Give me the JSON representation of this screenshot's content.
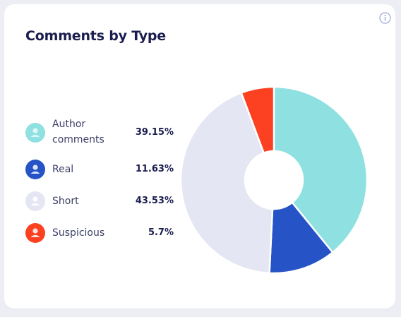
{
  "card": {
    "title": "Comments by Type",
    "info_icon": "info-icon"
  },
  "legend": [
    {
      "label": "Author comments",
      "value": "39.15%",
      "color": "#8fe0e0",
      "icon": "user-icon"
    },
    {
      "label": "Real",
      "value": "11.63%",
      "color": "#2653c6",
      "icon": "user-icon"
    },
    {
      "label": "Short",
      "value": "43.53%",
      "color": "#e4e6f3",
      "icon": "user-icon"
    },
    {
      "label": "Suspicious",
      "value": "5.7%",
      "color": "#fc4122",
      "icon": "user-icon"
    }
  ],
  "chart_data": {
    "type": "pie",
    "title": "Comments by Type",
    "donut": true,
    "categories": [
      "Author comments",
      "Real",
      "Short",
      "Suspicious"
    ],
    "values": [
      39.15,
      11.63,
      43.53,
      5.7
    ],
    "colors": [
      "#8fe0e0",
      "#2653c6",
      "#e4e6f3",
      "#fc4122"
    ],
    "start": "top, clockwise",
    "legend": "left"
  }
}
